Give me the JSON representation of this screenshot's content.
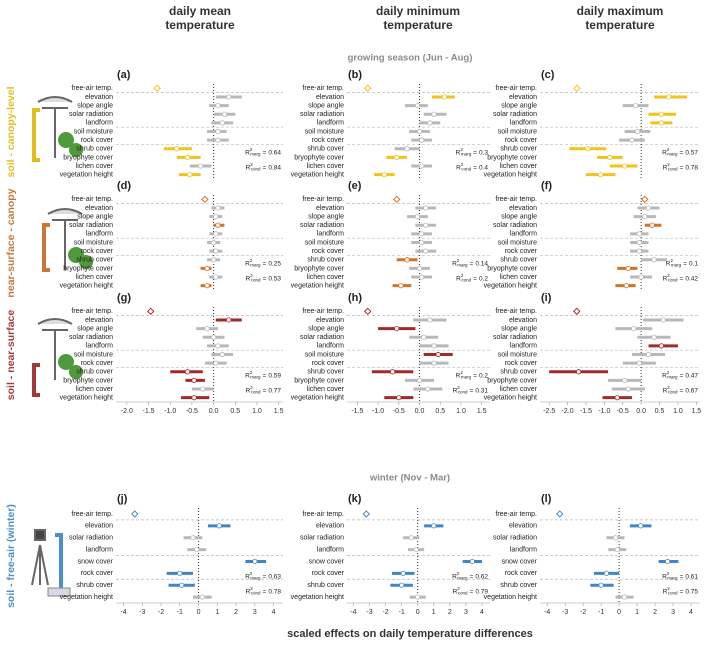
{
  "column_headers": [
    "daily mean temperature",
    "daily minimum temperature",
    "daily maximum temperature"
  ],
  "section_titles": [
    "growing season (Jun - Aug)",
    "winter (Nov - Mar)"
  ],
  "row_labels": [
    {
      "text": "soil - canopy-level",
      "color": "#e3bd1c"
    },
    {
      "text": "near-surface - canopy",
      "color": "#c8763a"
    },
    {
      "text": "soil - near-surface",
      "color": "#a3393a"
    },
    {
      "text": "soil - free-air (winter)",
      "color": "#4a8fd0"
    }
  ],
  "x_label": "scaled effects on daily temperature differences",
  "r2_text": {
    "symbol": "R",
    "power": "2",
    "marg": "marg",
    "cond": "cond",
    "equals": "="
  },
  "chart_data": [
    {
      "type": "forest",
      "title": "(a)",
      "color": "#f2c318",
      "nonsig_color": "#b8b8b8",
      "categories": [
        "free-air temp.",
        "elevation",
        "slope angle",
        "solar radiation",
        "landform",
        "soil moisture",
        "rock cover",
        "shrub cover",
        "bryophyte cover",
        "lichen cover",
        "vegetation height"
      ],
      "values": [
        -1.3,
        0.35,
        0.1,
        0.25,
        0.2,
        0.1,
        0.1,
        -0.85,
        -0.6,
        -0.3,
        -0.55
      ],
      "lower": [
        null,
        0.05,
        -0.1,
        0,
        -0.05,
        -0.15,
        -0.15,
        -1.15,
        -0.85,
        -0.55,
        -0.8
      ],
      "upper": [
        null,
        0.65,
        0.35,
        0.5,
        0.45,
        0.3,
        0.35,
        -0.5,
        -0.3,
        -0.05,
        -0.3
      ],
      "significant": [
        true,
        false,
        false,
        false,
        false,
        false,
        false,
        true,
        true,
        false,
        true
      ],
      "xlim": [
        -2.25,
        1.6
      ],
      "r2_marg": 0.64,
      "r2_cond": 0.84
    },
    {
      "type": "forest",
      "title": "(b)",
      "color": "#f2c318",
      "nonsig_color": "#b8b8b8",
      "categories": [
        "free-air temp.",
        "elevation",
        "slope angle",
        "solar radiation",
        "landform",
        "soil moisture",
        "rock cover",
        "shrub cover",
        "bryophyte cover",
        "lichen cover",
        "vegetation height"
      ],
      "values": [
        -1.25,
        0.6,
        -0.05,
        0.35,
        0.25,
        0,
        0.05,
        -0.3,
        -0.55,
        0.05,
        -0.85
      ],
      "lower": [
        null,
        0.3,
        -0.35,
        0.1,
        0,
        -0.25,
        -0.2,
        -0.6,
        -0.8,
        -0.2,
        -1.1
      ],
      "upper": [
        null,
        0.85,
        0.2,
        0.65,
        0.5,
        0.25,
        0.3,
        0,
        -0.3,
        0.3,
        -0.6
      ],
      "significant": [
        true,
        true,
        false,
        false,
        false,
        false,
        false,
        false,
        true,
        false,
        true
      ],
      "xlim": [
        -1.75,
        1.7
      ],
      "r2_marg": 0.3,
      "r2_cond": 0.4
    },
    {
      "type": "forest",
      "title": "(c)",
      "color": "#f2c318",
      "nonsig_color": "#b8b8b8",
      "categories": [
        "free-air temp.",
        "elevation",
        "slope angle",
        "solar radiation",
        "landform",
        "soil moisture",
        "rock cover",
        "shrub cover",
        "bryophyte cover",
        "lichen cover",
        "vegetation height"
      ],
      "values": [
        -1.75,
        0.75,
        -0.15,
        0.55,
        0.55,
        -0.1,
        -0.25,
        -1.45,
        -0.85,
        -0.45,
        -1.1
      ],
      "lower": [
        null,
        0.35,
        -0.5,
        0.2,
        0.25,
        -0.45,
        -0.6,
        -1.95,
        -1.2,
        -0.85,
        -1.5
      ],
      "upper": [
        null,
        1.25,
        0.2,
        0.95,
        0.85,
        0.25,
        0.1,
        -0.95,
        -0.5,
        -0.1,
        -0.7
      ],
      "significant": [
        true,
        true,
        false,
        true,
        true,
        false,
        false,
        true,
        true,
        true,
        true
      ],
      "xlim": [
        -2.75,
        1.6
      ],
      "r2_marg": 0.57,
      "r2_cond": 0.78
    },
    {
      "type": "forest",
      "title": "(d)",
      "color": "#d2732a",
      "nonsig_color": "#b8b8b8",
      "categories": [
        "free-air temp.",
        "elevation",
        "slope angle",
        "solar radiation",
        "landform",
        "soil moisture",
        "rock cover",
        "shrub cover",
        "bryophyte cover",
        "lichen cover",
        "vegetation height"
      ],
      "values": [
        -0.2,
        0.1,
        0.05,
        0.1,
        0.05,
        0,
        0.05,
        0,
        -0.15,
        0.05,
        -0.15
      ],
      "lower": [
        null,
        -0.05,
        -0.1,
        0,
        -0.1,
        -0.15,
        -0.1,
        -0.15,
        -0.3,
        -0.1,
        -0.3
      ],
      "upper": [
        null,
        0.25,
        0.2,
        0.25,
        0.2,
        0.15,
        0.2,
        0.15,
        -0.05,
        0.2,
        -0.05
      ],
      "significant": [
        true,
        false,
        false,
        true,
        false,
        false,
        false,
        false,
        true,
        false,
        true
      ],
      "xlim": [
        -2.25,
        1.6
      ],
      "r2_marg": 0.25,
      "r2_cond": 0.53
    },
    {
      "type": "forest",
      "title": "(e)",
      "color": "#d2732a",
      "nonsig_color": "#b8b8b8",
      "categories": [
        "free-air temp.",
        "elevation",
        "slope angle",
        "solar radiation",
        "landform",
        "soil moisture",
        "rock cover",
        "shrub cover",
        "bryophyte cover",
        "lichen cover",
        "vegetation height"
      ],
      "values": [
        -0.55,
        0.15,
        -0.05,
        0.15,
        0.05,
        0.05,
        0.15,
        -0.3,
        0,
        0.05,
        -0.45
      ],
      "lower": [
        null,
        -0.1,
        -0.3,
        -0.1,
        -0.2,
        -0.2,
        -0.1,
        -0.55,
        -0.25,
        -0.2,
        -0.65
      ],
      "upper": [
        null,
        0.4,
        0.2,
        0.4,
        0.3,
        0.3,
        0.4,
        -0.05,
        0.25,
        0.3,
        -0.2
      ],
      "significant": [
        true,
        false,
        false,
        false,
        false,
        false,
        false,
        true,
        false,
        false,
        true
      ],
      "xlim": [
        -1.75,
        1.7
      ],
      "r2_marg": 0.14,
      "r2_cond": 0.2
    },
    {
      "type": "forest",
      "title": "(f)",
      "color": "#d2732a",
      "nonsig_color": "#b8b8b8",
      "categories": [
        "free-air temp.",
        "elevation",
        "slope angle",
        "solar radiation",
        "landform",
        "soil moisture",
        "rock cover",
        "shrub cover",
        "bryophyte cover",
        "lichen cover",
        "vegetation height"
      ],
      "values": [
        0.1,
        0.2,
        0.1,
        0.3,
        -0.05,
        -0.05,
        -0.05,
        0.35,
        -0.35,
        0,
        -0.4
      ],
      "lower": [
        null,
        -0.1,
        -0.2,
        0.1,
        -0.3,
        -0.3,
        -0.3,
        0,
        -0.65,
        -0.3,
        -0.7
      ],
      "upper": [
        null,
        0.5,
        0.4,
        0.55,
        0.2,
        0.2,
        0.2,
        0.7,
        -0.1,
        0.3,
        -0.15
      ],
      "significant": [
        true,
        false,
        false,
        true,
        false,
        false,
        false,
        false,
        true,
        false,
        true
      ],
      "xlim": [
        -2.75,
        1.6
      ],
      "r2_marg": 0.1,
      "r2_cond": 0.42
    },
    {
      "type": "forest",
      "title": "(g)",
      "color": "#a32a2a",
      "nonsig_color": "#b8b8b8",
      "categories": [
        "free-air temp.",
        "elevation",
        "slope angle",
        "solar radiation",
        "landform",
        "soil moisture",
        "rock cover",
        "shrub cover",
        "bryophyte cover",
        "lichen cover",
        "vegetation height"
      ],
      "values": [
        -1.45,
        0.35,
        -0.15,
        0,
        0.1,
        0.2,
        0.05,
        -0.6,
        -0.45,
        -0.25,
        -0.45
      ],
      "lower": [
        null,
        0.05,
        -0.4,
        -0.25,
        -0.15,
        -0.05,
        -0.2,
        -1,
        -0.65,
        -0.5,
        -0.75
      ],
      "upper": [
        null,
        0.65,
        0.1,
        0.25,
        0.35,
        0.45,
        0.3,
        -0.25,
        -0.2,
        0,
        -0.1
      ],
      "significant": [
        true,
        true,
        false,
        false,
        false,
        false,
        false,
        true,
        true,
        false,
        true
      ],
      "xlim": [
        -2.25,
        1.6
      ],
      "xticks": [
        {
          "value": -2,
          "label": "-2.0"
        },
        -1.5,
        {
          "value": -1,
          "label": "-1.0"
        },
        -0.5,
        {
          "value": 0,
          "label": "0.0"
        },
        0.5,
        {
          "value": 1,
          "label": "1.0"
        },
        1.5
      ],
      "r2_marg": 0.59,
      "r2_cond": 0.77
    },
    {
      "type": "forest",
      "title": "(h)",
      "color": "#a32a2a",
      "nonsig_color": "#b8b8b8",
      "categories": [
        "free-air temp.",
        "elevation",
        "slope angle",
        "solar radiation",
        "landform",
        "soil moisture",
        "rock cover",
        "shrub cover",
        "bryophyte cover",
        "lichen cover",
        "vegetation height"
      ],
      "values": [
        -1.25,
        0.25,
        -0.55,
        0.1,
        0.35,
        0.45,
        0.35,
        -0.65,
        0,
        0.2,
        -0.5
      ],
      "lower": [
        null,
        -0.15,
        -1,
        -0.25,
        0,
        0.1,
        0,
        -1.15,
        -0.35,
        -0.15,
        -0.85
      ],
      "upper": [
        null,
        0.65,
        -0.1,
        0.45,
        0.7,
        0.8,
        0.7,
        -0.15,
        0.35,
        0.55,
        -0.15
      ],
      "significant": [
        true,
        false,
        true,
        false,
        false,
        true,
        false,
        true,
        false,
        false,
        true
      ],
      "xlim": [
        -1.75,
        1.7
      ],
      "xticks": [
        -1.5,
        {
          "value": -1,
          "label": "-1.0"
        },
        -0.5,
        {
          "value": 0,
          "label": "0.0"
        },
        0.5,
        {
          "value": 1,
          "label": "1.0"
        },
        1.5
      ],
      "r2_marg": 0.2,
      "r2_cond": 0.31
    },
    {
      "type": "forest",
      "title": "(i)",
      "color": "#a32a2a",
      "nonsig_color": "#b8b8b8",
      "categories": [
        "free-air temp.",
        "elevation",
        "slope angle",
        "solar radiation",
        "landform",
        "soil moisture",
        "rock cover",
        "shrub cover",
        "bryophyte cover",
        "lichen cover",
        "vegetation height"
      ],
      "values": [
        -1.75,
        0.6,
        -0.2,
        0.35,
        0.55,
        0.2,
        -0.05,
        -1.7,
        -0.45,
        -0.35,
        -0.65
      ],
      "lower": [
        null,
        0.05,
        -0.7,
        -0.1,
        0.2,
        -0.25,
        -0.5,
        -2.5,
        -0.9,
        -0.8,
        -1.05
      ],
      "upper": [
        null,
        1.15,
        0.3,
        0.8,
        1,
        0.65,
        0.4,
        -0.9,
        0,
        0.1,
        -0.25
      ],
      "significant": [
        true,
        false,
        false,
        false,
        true,
        false,
        false,
        true,
        false,
        false,
        true
      ],
      "xlim": [
        -2.75,
        1.6
      ],
      "xticks": [
        -2.5,
        {
          "value": -2,
          "label": "-2.0"
        },
        -1.5,
        {
          "value": -1,
          "label": "-1.0"
        },
        -0.5,
        {
          "value": 0,
          "label": "0.0"
        },
        0.5,
        {
          "value": 1,
          "label": "1.0"
        },
        1.5
      ],
      "r2_marg": 0.47,
      "r2_cond": 0.67
    },
    {
      "type": "forest",
      "title": "(j)",
      "color": "#3f86c8",
      "nonsig_color": "#b8b8b8",
      "categories": [
        "free-air temp.",
        "elevation",
        "solar radiation",
        "landform",
        "snow cover",
        "rock cover",
        "shrub cover",
        "vegetation height"
      ],
      "values": [
        -3.4,
        1.1,
        -0.3,
        -0.1,
        3,
        -1,
        -0.9,
        0.2
      ],
      "lower": [
        null,
        0.5,
        -0.8,
        -0.6,
        2.5,
        -1.7,
        -1.6,
        -0.3
      ],
      "upper": [
        null,
        1.7,
        0.2,
        0.4,
        3.6,
        -0.3,
        -0.2,
        0.7
      ],
      "significant": [
        true,
        true,
        false,
        false,
        true,
        true,
        true,
        false
      ],
      "xlim": [
        -4.4,
        4.5
      ],
      "xticks": [
        -4,
        -3,
        -2,
        -1,
        0,
        1,
        2,
        3,
        4
      ],
      "r2_marg": 0.63,
      "r2_cond": 0.78
    },
    {
      "type": "forest",
      "title": "(k)",
      "color": "#3f86c8",
      "nonsig_color": "#b8b8b8",
      "categories": [
        "free-air temp.",
        "elevation",
        "solar radiation",
        "landform",
        "snow cover",
        "rock cover",
        "shrub cover",
        "vegetation height"
      ],
      "values": [
        -3.2,
        1,
        -0.4,
        -0.1,
        3.4,
        -0.9,
        -1,
        0
      ],
      "lower": [
        null,
        0.4,
        -0.9,
        -0.6,
        2.8,
        -1.6,
        -1.7,
        -0.5
      ],
      "upper": [
        null,
        1.6,
        0.1,
        0.4,
        4,
        -0.2,
        -0.3,
        0.5
      ],
      "significant": [
        true,
        true,
        false,
        false,
        true,
        true,
        true,
        false
      ],
      "xlim": [
        -4.4,
        4.5
      ],
      "xticks": [
        -4,
        -3,
        -2,
        -1,
        0,
        1,
        2,
        3,
        4
      ],
      "r2_marg": 0.62,
      "r2_cond": 0.79
    },
    {
      "type": "forest",
      "title": "(l)",
      "color": "#3f86c8",
      "nonsig_color": "#b8b8b8",
      "categories": [
        "free-air temp.",
        "elevation",
        "solar radiation",
        "landform",
        "snow cover",
        "rock cover",
        "shrub cover",
        "vegetation height"
      ],
      "values": [
        -3.3,
        1.2,
        -0.2,
        -0.1,
        2.7,
        -0.7,
        -1,
        0.3
      ],
      "lower": [
        null,
        0.6,
        -0.7,
        -0.6,
        2.2,
        -1.4,
        -1.6,
        -0.2
      ],
      "upper": [
        null,
        1.8,
        0.3,
        0.4,
        3.3,
        0,
        -0.3,
        0.8
      ],
      "significant": [
        true,
        true,
        false,
        false,
        true,
        true,
        true,
        false
      ],
      "xlim": [
        -4.4,
        4.5
      ],
      "xticks": [
        -4,
        -3,
        -2,
        -1,
        0,
        1,
        2,
        3,
        4
      ],
      "r2_marg": 0.61,
      "r2_cond": 0.75
    }
  ]
}
